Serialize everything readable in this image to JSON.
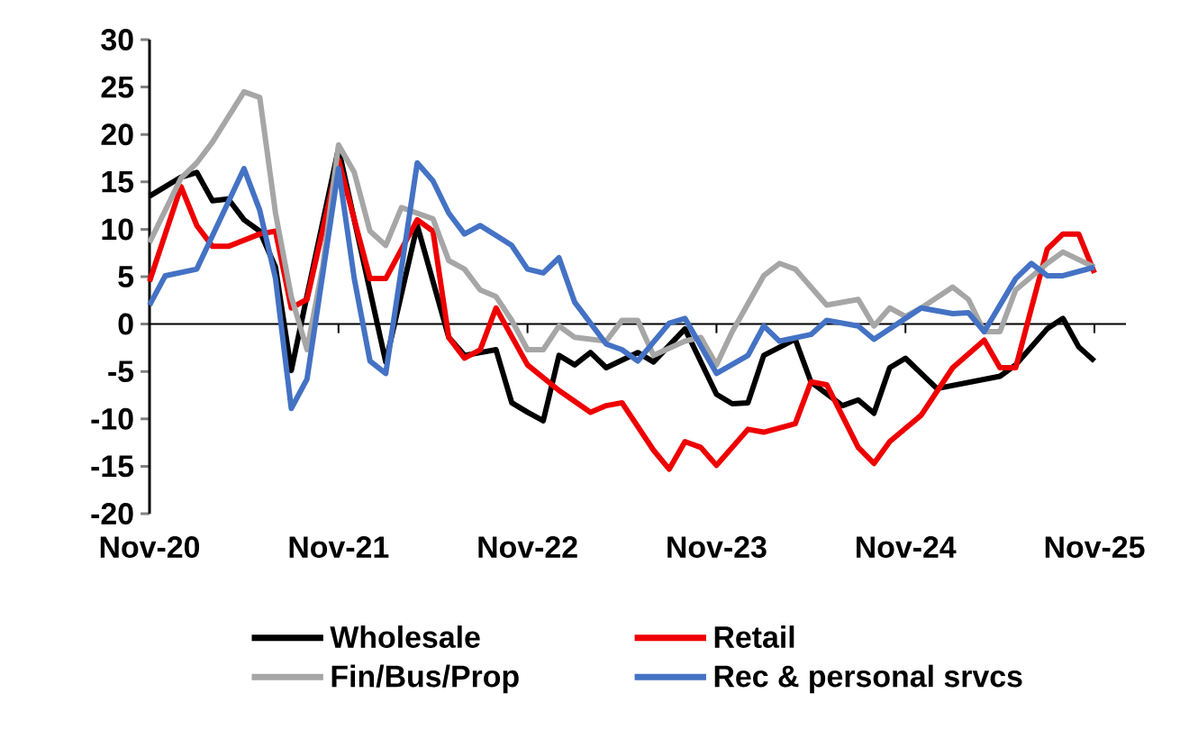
{
  "chart_data": {
    "type": "line",
    "xlim": [
      "2020-11",
      "2026-01"
    ],
    "ylim": [
      -20,
      30
    ],
    "xticks": [
      {
        "value": "2020-11",
        "label": "Nov-20"
      },
      {
        "value": "2021-11",
        "label": "Nov-21"
      },
      {
        "value": "2022-11",
        "label": "Nov-22"
      },
      {
        "value": "2023-11",
        "label": "Nov-23"
      },
      {
        "value": "2024-11",
        "label": "Nov-24"
      },
      {
        "value": "2025-11",
        "label": "Nov-25"
      }
    ],
    "yticks": [
      -20,
      -15,
      -10,
      -5,
      0,
      5,
      10,
      15,
      20,
      25,
      30
    ],
    "ref_lines": [
      {
        "axis": "y",
        "value": 0,
        "color": "#000000"
      }
    ],
    "legend": "bottom",
    "grid": false,
    "marker": "none",
    "line_style": "solid",
    "series": [
      {
        "name": "Wholesale",
        "color": "#000000",
        "x": [
          "2020-11",
          "2020-12",
          "2021-01",
          "2021-02",
          "2021-03",
          "2021-04",
          "2021-05",
          "2021-06",
          "2021-07",
          "2021-08",
          "2021-09",
          "2021-11",
          "2022-02",
          "2022-04",
          "2022-06",
          "2022-07",
          "2022-09",
          "2022-10",
          "2022-11",
          "2022-12",
          "2023-01",
          "2023-02",
          "2023-03",
          "2023-04",
          "2023-06",
          "2023-07",
          "2023-09",
          "2023-11",
          "2023-12",
          "2024-01",
          "2024-02",
          "2024-04",
          "2024-05",
          "2024-07",
          "2024-08",
          "2024-09",
          "2024-10",
          "2024-11",
          "2025-01",
          "2025-05",
          "2025-06",
          "2025-08",
          "2025-09",
          "2025-10",
          "2025-11"
        ],
        "values": [
          13.5,
          14.5,
          15.5,
          16,
          13,
          13.2,
          11,
          9.8,
          6,
          -4.9,
          3,
          18.5,
          -4,
          10.4,
          -1.4,
          -3.3,
          -2.7,
          -8.3,
          -9.3,
          -10.2,
          -3.3,
          -4.3,
          -3,
          -4.6,
          -3,
          -4,
          -0.5,
          -7.4,
          -8.4,
          -8.3,
          -3.3,
          -1.6,
          -6.1,
          -8.6,
          -8,
          -9.4,
          -4.6,
          -3.6,
          -6.8,
          -5.5,
          -4.3,
          -0.5,
          0.6,
          -2.4,
          -3.9
        ]
      },
      {
        "name": "Retail",
        "color": "#ee0000",
        "x": [
          "2020-11",
          "2021-01",
          "2021-02",
          "2021-03",
          "2021-04",
          "2021-06",
          "2021-07",
          "2021-08",
          "2021-09",
          "2021-11",
          "2022-01",
          "2022-02",
          "2022-04",
          "2022-05",
          "2022-06",
          "2022-07",
          "2022-08",
          "2022-09",
          "2022-11",
          "2023-01",
          "2023-03",
          "2023-04",
          "2023-05",
          "2023-07",
          "2023-08",
          "2023-09",
          "2023-10",
          "2023-11",
          "2024-01",
          "2024-02",
          "2024-04",
          "2024-05",
          "2024-06",
          "2024-08",
          "2024-09",
          "2024-10",
          "2024-12",
          "2025-02",
          "2025-04",
          "2025-05",
          "2025-06",
          "2025-07",
          "2025-08",
          "2025-09",
          "2025-10",
          "2025-11"
        ],
        "values": [
          4.5,
          14.5,
          10.4,
          8.2,
          8.2,
          9.5,
          9.8,
          1.7,
          2.6,
          17.3,
          4.8,
          4.8,
          11,
          9.8,
          -1.4,
          -3.6,
          -2.7,
          1.7,
          -4.3,
          -7,
          -9.3,
          -8.6,
          -8.3,
          -13.3,
          -15.3,
          -12.4,
          -13,
          -14.9,
          -11.1,
          -11.4,
          -10.5,
          -6.1,
          -6.4,
          -13,
          -14.7,
          -12.4,
          -9.6,
          -4.6,
          -1.7,
          -4.6,
          -4.6,
          1.7,
          7.9,
          9.5,
          9.5,
          5.4
        ]
      },
      {
        "name": "Fin/Bus/Prop",
        "color": "#a6a6a6",
        "x": [
          "2020-11",
          "2021-01",
          "2021-02",
          "2021-03",
          "2021-05",
          "2021-06",
          "2021-07",
          "2021-08",
          "2021-09",
          "2021-10",
          "2021-11",
          "2021-12",
          "2022-01",
          "2022-02",
          "2022-03",
          "2022-04",
          "2022-05",
          "2022-06",
          "2022-07",
          "2022-08",
          "2022-09",
          "2022-10",
          "2022-11",
          "2022-12",
          "2023-01",
          "2023-02",
          "2023-04",
          "2023-05",
          "2023-06",
          "2023-07",
          "2023-09",
          "2023-10",
          "2023-11",
          "2023-12",
          "2024-02",
          "2024-03",
          "2024-04",
          "2024-06",
          "2024-08",
          "2024-09",
          "2024-10",
          "2024-11",
          "2024-12",
          "2025-02",
          "2025-03",
          "2025-04",
          "2025-05",
          "2025-06",
          "2025-08",
          "2025-09",
          "2025-11"
        ],
        "values": [
          8.6,
          15.4,
          17,
          19.2,
          24.5,
          23.9,
          11.7,
          2.9,
          -2.7,
          6.1,
          18.9,
          16,
          9.8,
          8.3,
          12.3,
          11.7,
          11.1,
          6.7,
          5.8,
          3.6,
          2.9,
          0.4,
          -2.7,
          -2.7,
          -0.2,
          -1.4,
          -1.8,
          0.4,
          0.4,
          -3.3,
          -1.8,
          -1.4,
          -4.3,
          -0.8,
          5.1,
          6.4,
          5.8,
          2,
          2.6,
          -0.2,
          1.7,
          0.8,
          1.7,
          3.9,
          2.6,
          -0.8,
          -0.8,
          3.6,
          6.4,
          7.6,
          6
        ]
      },
      {
        "name": "Rec & personal srvcs",
        "color": "#4472c4",
        "x": [
          "2020-11",
          "2020-12",
          "2021-02",
          "2021-05",
          "2021-06",
          "2021-07",
          "2021-08",
          "2021-09",
          "2021-11",
          "2021-12",
          "2022-01",
          "2022-02",
          "2022-04",
          "2022-05",
          "2022-06",
          "2022-07",
          "2022-08",
          "2022-10",
          "2022-11",
          "2022-12",
          "2023-01",
          "2023-02",
          "2023-04",
          "2023-05",
          "2023-06",
          "2023-08",
          "2023-09",
          "2023-11",
          "2024-01",
          "2024-02",
          "2024-03",
          "2024-05",
          "2024-06",
          "2024-08",
          "2024-09",
          "2024-10",
          "2024-12",
          "2025-01",
          "2025-02",
          "2025-03",
          "2025-04",
          "2025-06",
          "2025-07",
          "2025-08",
          "2025-09",
          "2025-11"
        ],
        "values": [
          2,
          5.1,
          5.8,
          16.4,
          12,
          4.8,
          -8.9,
          -5.8,
          16.4,
          4.8,
          -3.9,
          -5.2,
          17,
          15.1,
          11.7,
          9.5,
          10.4,
          8.3,
          5.8,
          5.4,
          7,
          2.3,
          -2.1,
          -2.7,
          -3.9,
          0.1,
          0.6,
          -5.2,
          -3.3,
          -0.2,
          -1.8,
          -1.1,
          0.4,
          -0.2,
          -1.6,
          -0.5,
          1.7,
          1.4,
          1.1,
          1.2,
          -0.8,
          4.8,
          6.4,
          5.1,
          5.1,
          6
        ]
      }
    ]
  }
}
